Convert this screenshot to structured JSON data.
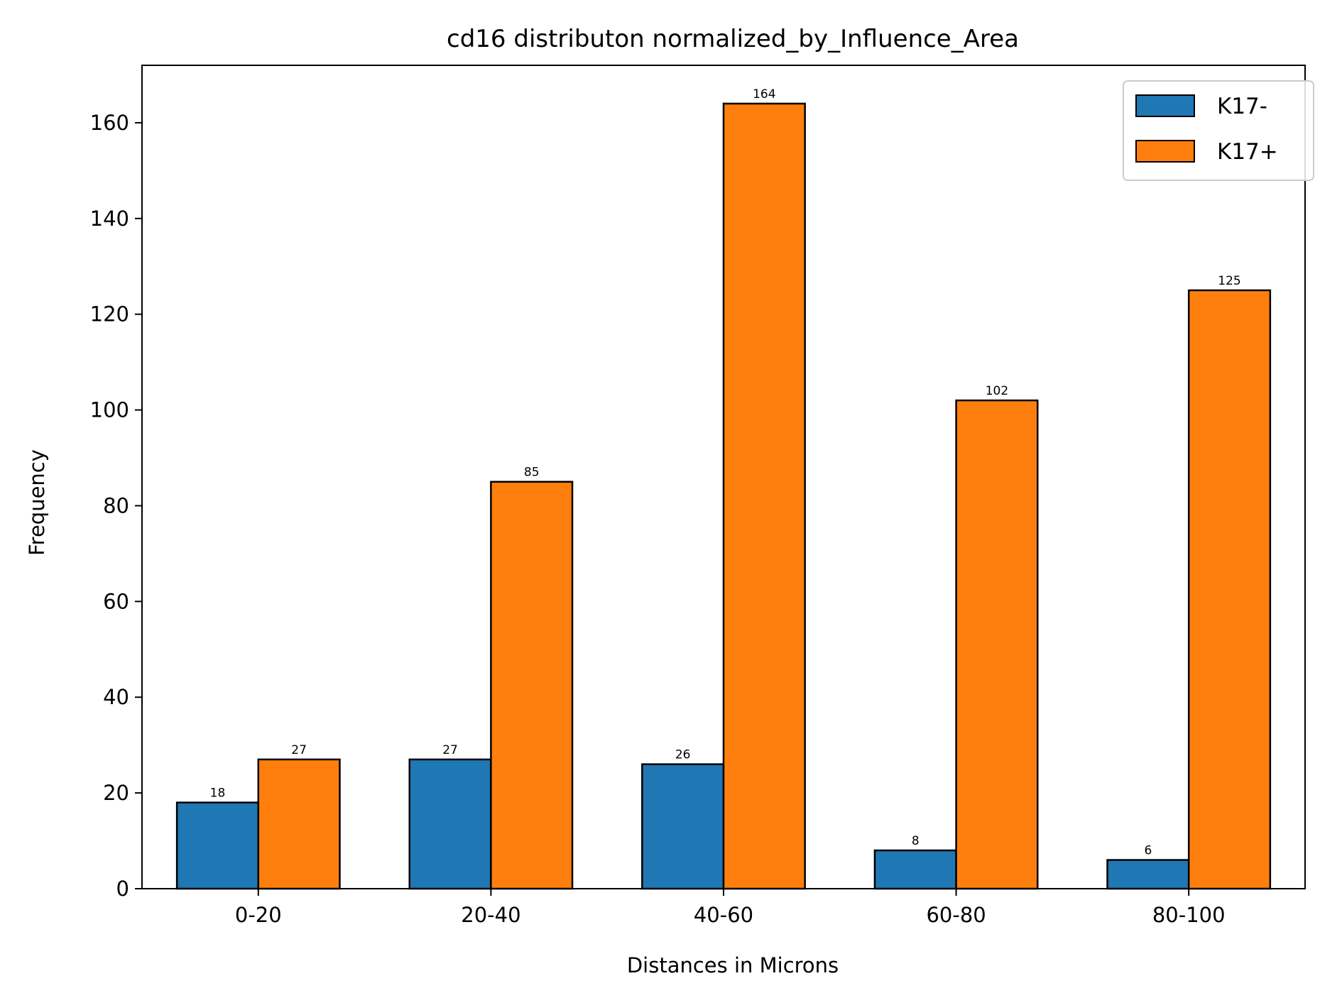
{
  "chart_data": {
    "type": "bar",
    "title": "cd16 distributon normalized_by_Influence_Area",
    "xlabel": "Distances in Microns",
    "ylabel": "Frequency",
    "categories": [
      "0-20",
      "20-40",
      "40-60",
      "60-80",
      "80-100"
    ],
    "series": [
      {
        "name": "K17-",
        "values": [
          18,
          27,
          26,
          8,
          6
        ],
        "color": "#1f77b4"
      },
      {
        "name": "K17+",
        "values": [
          27,
          85,
          164,
          102,
          125
        ],
        "color": "#ff7f0e"
      }
    ],
    "ylim": [
      0,
      172
    ],
    "yticks": [
      0,
      20,
      40,
      60,
      80,
      100,
      120,
      140,
      160
    ],
    "grid": false,
    "legend": "top-right"
  }
}
